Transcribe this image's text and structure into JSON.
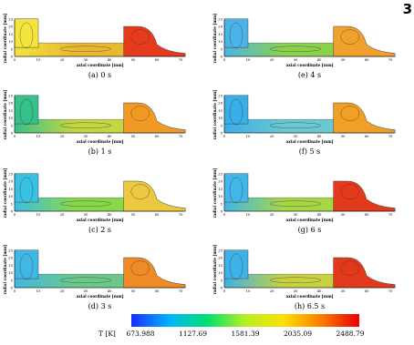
{
  "corner_label": "3",
  "panels": [
    {
      "caption": "(a) 0 s",
      "left_color": "#f4e43c",
      "right_color": "#e63a1c",
      "channel_color": "#e8b830"
    },
    {
      "caption": "(e) 4 s",
      "left_color": "#4ab4e8",
      "right_color": "#f0a02c",
      "channel_color": "#8ad24c"
    },
    {
      "caption": "(b) 1 s",
      "left_color": "#36c08a",
      "right_color": "#f09a24",
      "channel_color": "#c4d640"
    },
    {
      "caption": "(f) 5 s",
      "left_color": "#3aaee6",
      "right_color": "#f0a024",
      "channel_color": "#6ac8d2"
    },
    {
      "caption": "(c) 2 s",
      "left_color": "#3ac0e2",
      "right_color": "#ecc840",
      "channel_color": "#8ad84a"
    },
    {
      "caption": "(g) 6 s",
      "left_color": "#42b6e8",
      "right_color": "#e23a1a",
      "channel_color": "#a6d846"
    },
    {
      "caption": "(d) 3 s",
      "left_color": "#40b8e6",
      "right_color": "#f08a24",
      "channel_color": "#6cc88a"
    },
    {
      "caption": "(h) 6.5 s",
      "left_color": "#3eb2e6",
      "right_color": "#e2381c",
      "channel_color": "#c8d23e"
    }
  ],
  "axes": {
    "ylabel": "radial coordinate [mm]",
    "xlabel": "axial coordinate [mm]",
    "yticks": [
      "0",
      "5",
      "10",
      "15",
      "20",
      "25"
    ],
    "xticks": [
      "0",
      "10",
      "20",
      "30",
      "40",
      "50",
      "60",
      "70"
    ]
  },
  "colorbar": {
    "label": "T [K]",
    "ticks": [
      "673.988",
      "1127.69",
      "1581.39",
      "2035.09",
      "2488.79"
    ],
    "colors": [
      "#1a2cff",
      "#00b4ff",
      "#00e070",
      "#b4f020",
      "#ffe000",
      "#ff7a00",
      "#e80000"
    ]
  }
}
